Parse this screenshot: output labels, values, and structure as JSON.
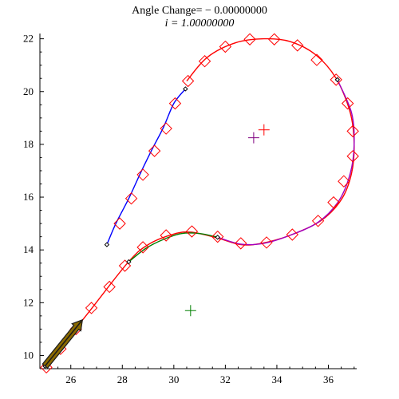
{
  "chart_data": {
    "type": "line",
    "title": "Angle Change= − 0.00000000",
    "subtitle": "i = 1.00000000",
    "xlabel": "",
    "ylabel": "",
    "xlim": [
      24.8,
      37.1
    ],
    "ylim": [
      9.5,
      22.2
    ],
    "x_ticks": [
      26,
      28,
      30,
      32,
      34,
      36
    ],
    "y_ticks": [
      10,
      12,
      14,
      16,
      18,
      20,
      22
    ],
    "grid": false,
    "colors": {
      "red_curve": "#ff0000",
      "blue_segment": "#0000ff",
      "purple_arc": "#a000c0",
      "green_arc": "#008000",
      "arrow_fill": "#8b6a00",
      "arrow_shaft": "#1a1a1a",
      "diamond_stroke": "#ff0000",
      "plus_green": "#008000",
      "plus_red": "#ff0000",
      "plus_purple": "#800080"
    },
    "series": [
      {
        "kind": "path",
        "color_key": "red_curve",
        "points": [
          [
            24.95,
            9.55
          ],
          [
            26.5,
            11.4
          ],
          [
            28.2,
            13.5
          ],
          [
            29.0,
            14.2
          ],
          [
            30.0,
            14.6
          ],
          [
            30.7,
            14.67
          ],
          [
            31.7,
            14.45
          ],
          [
            32.6,
            14.2
          ],
          [
            33.4,
            14.25
          ],
          [
            34.5,
            14.55
          ],
          [
            35.7,
            15.1
          ],
          [
            36.5,
            15.9
          ],
          [
            36.9,
            16.9
          ],
          [
            37.0,
            18.0
          ],
          [
            36.85,
            19.2
          ],
          [
            36.3,
            20.5
          ],
          [
            35.5,
            21.4
          ],
          [
            34.5,
            21.9
          ],
          [
            33.5,
            22.0
          ],
          [
            32.4,
            21.85
          ],
          [
            31.3,
            21.3
          ],
          [
            30.5,
            20.4
          ]
        ]
      },
      {
        "kind": "path",
        "color_key": "blue_segment",
        "points": [
          [
            27.4,
            14.2
          ],
          [
            27.75,
            15.0
          ],
          [
            28.25,
            15.95
          ],
          [
            28.7,
            16.9
          ],
          [
            29.15,
            17.8
          ],
          [
            29.6,
            18.65
          ],
          [
            30.0,
            19.55
          ],
          [
            30.45,
            20.1
          ]
        ]
      },
      {
        "kind": "path",
        "color_key": "purple_arc",
        "points": [
          [
            31.7,
            14.48
          ],
          [
            32.6,
            14.22
          ],
          [
            33.5,
            14.25
          ],
          [
            34.5,
            14.55
          ],
          [
            35.6,
            15.05
          ],
          [
            36.4,
            15.85
          ],
          [
            36.85,
            16.9
          ],
          [
            37.0,
            18.0
          ],
          [
            36.9,
            19.2
          ],
          [
            36.35,
            20.45
          ]
        ]
      },
      {
        "kind": "path",
        "color_key": "green_arc",
        "points": [
          [
            28.25,
            13.55
          ],
          [
            28.9,
            14.05
          ],
          [
            29.6,
            14.4
          ],
          [
            30.3,
            14.62
          ],
          [
            31.0,
            14.62
          ],
          [
            31.7,
            14.48
          ]
        ]
      }
    ],
    "diamonds": [
      [
        25.05,
        9.55
      ],
      [
        25.6,
        10.25
      ],
      [
        26.2,
        11.0
      ],
      [
        26.8,
        11.8
      ],
      [
        27.5,
        12.6
      ],
      [
        28.1,
        13.4
      ],
      [
        28.8,
        14.1
      ],
      [
        29.7,
        14.55
      ],
      [
        30.7,
        14.7
      ],
      [
        31.7,
        14.5
      ],
      [
        32.6,
        14.25
      ],
      [
        33.6,
        14.28
      ],
      [
        34.6,
        14.58
      ],
      [
        35.6,
        15.1
      ],
      [
        36.2,
        15.8
      ],
      [
        36.6,
        16.6
      ],
      [
        36.95,
        17.55
      ],
      [
        36.95,
        18.5
      ],
      [
        36.75,
        19.55
      ],
      [
        36.3,
        20.45
      ],
      [
        35.55,
        21.2
      ],
      [
        34.8,
        21.75
      ],
      [
        33.9,
        21.98
      ],
      [
        32.95,
        21.98
      ],
      [
        32.0,
        21.7
      ],
      [
        31.2,
        21.15
      ],
      [
        30.55,
        20.4
      ],
      [
        30.05,
        19.55
      ],
      [
        29.7,
        18.6
      ],
      [
        29.25,
        17.75
      ],
      [
        28.8,
        16.85
      ],
      [
        28.35,
        15.95
      ],
      [
        27.9,
        15.0
      ]
    ],
    "small_markers": [
      [
        27.4,
        14.2
      ],
      [
        30.45,
        20.1
      ],
      [
        28.25,
        13.55
      ],
      [
        31.7,
        14.48
      ],
      [
        36.35,
        20.45
      ],
      [
        25.0,
        9.6
      ]
    ],
    "plus_markers": [
      {
        "pos": [
          30.65,
          11.7
        ],
        "color_key": "plus_green"
      },
      {
        "pos": [
          33.5,
          18.55
        ],
        "color_key": "plus_red"
      },
      {
        "pos": [
          33.1,
          18.25
        ],
        "color_key": "plus_purple"
      }
    ],
    "arrow": {
      "from": [
        25.0,
        9.6
      ],
      "to": [
        26.45,
        11.35
      ]
    }
  }
}
